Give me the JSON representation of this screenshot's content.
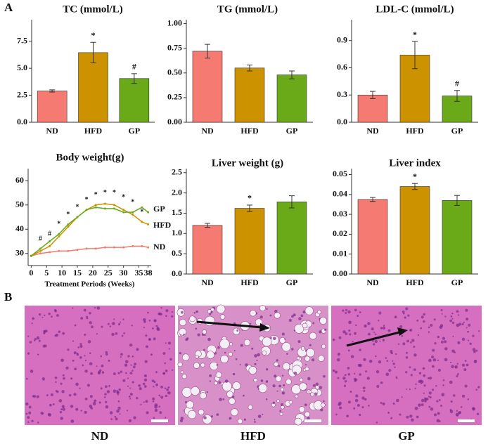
{
  "panel_labels": [
    "A",
    "B"
  ],
  "chart_data": [
    {
      "type": "bar",
      "title": "TC (mmol/L)",
      "categories": [
        "ND",
        "HFD",
        "GP"
      ],
      "values": [
        2.9,
        6.45,
        4.05
      ],
      "errors": [
        0.1,
        0.95,
        0.45
      ],
      "colors": [
        "#f47a72",
        "#cc9200",
        "#6aaa18"
      ],
      "markers": [
        null,
        "*",
        "#"
      ],
      "ylim": [
        0,
        9.5
      ],
      "yticks": [
        {
          "value": 0,
          "label": "0.0"
        },
        {
          "value": 2.5,
          "label": "2.5"
        },
        {
          "value": 5,
          "label": "5.0"
        },
        {
          "value": 7.5,
          "label": "7.5"
        }
      ]
    },
    {
      "type": "bar",
      "title": "TG (mmol/L)",
      "categories": [
        "ND",
        "HFD",
        "GP"
      ],
      "values": [
        0.72,
        0.55,
        0.48
      ],
      "errors": [
        0.07,
        0.03,
        0.04
      ],
      "colors": [
        "#f47a72",
        "#cc9200",
        "#6aaa18"
      ],
      "ylim": [
        0,
        1.04
      ],
      "yticks": [
        {
          "value": 0,
          "label": "0.00"
        },
        {
          "value": 0.25,
          "label": "0.25"
        },
        {
          "value": 0.5,
          "label": "0.50"
        },
        {
          "value": 0.75,
          "label": "0.75"
        },
        {
          "value": 1,
          "label": "1.00"
        }
      ]
    },
    {
      "type": "bar",
      "title": "LDL-C (mmol/L)",
      "categories": [
        "ND",
        "HFD",
        "GP"
      ],
      "values": [
        0.3,
        0.74,
        0.29
      ],
      "errors": [
        0.04,
        0.15,
        0.06
      ],
      "colors": [
        "#f47a72",
        "#cc9200",
        "#6aaa18"
      ],
      "markers": [
        null,
        "*",
        "#"
      ],
      "ylim": [
        0,
        1.13
      ],
      "yticks": [
        {
          "value": 0,
          "label": "0.0"
        },
        0.3,
        0.6,
        0.9
      ]
    },
    {
      "type": "line",
      "title": "Body weight(g)",
      "x_label": "Treatment Periods (Weeks)",
      "x": [
        0,
        3,
        6,
        9,
        12,
        15,
        18,
        21,
        24,
        27,
        30,
        33,
        36,
        38
      ],
      "series": [
        {
          "name": "ND",
          "color": "#f47a72",
          "values": [
            29,
            30,
            30.5,
            31,
            31,
            31.5,
            32,
            32,
            32.5,
            32.5,
            32.5,
            33,
            33,
            32.5
          ]
        },
        {
          "name": "HFD",
          "color": "#cc9200",
          "values": [
            29,
            31,
            33,
            37,
            41,
            45,
            48,
            50,
            50.5,
            50,
            48,
            46,
            43,
            42
          ]
        },
        {
          "name": "GP",
          "color": "#6aaa18",
          "values": [
            29,
            32,
            35,
            38,
            42,
            45,
            48,
            49,
            48.5,
            48.5,
            47,
            47,
            49,
            47
          ]
        }
      ],
      "annotations": [
        {
          "text": "#",
          "x": 3,
          "y": 36
        },
        {
          "text": "#",
          "x": 6,
          "y": 38
        },
        {
          "text": "*",
          "x": 9,
          "y": 42
        },
        {
          "text": "*",
          "x": 12,
          "y": 46
        },
        {
          "text": "*",
          "x": 15,
          "y": 49
        },
        {
          "text": "*",
          "x": 18,
          "y": 52
        },
        {
          "text": "*",
          "x": 21,
          "y": 54
        },
        {
          "text": "*",
          "x": 24,
          "y": 55
        },
        {
          "text": "*",
          "x": 27,
          "y": 55
        },
        {
          "text": "*",
          "x": 30,
          "y": 53
        },
        {
          "text": "*",
          "x": 33,
          "y": 51
        },
        {
          "text": "*",
          "x": 36,
          "y": 47
        }
      ],
      "xlim": [
        -1,
        39
      ],
      "xticks": [
        0,
        5,
        10,
        15,
        20,
        25,
        30,
        35,
        38
      ],
      "ylim": [
        25,
        65
      ],
      "yticks": [
        30,
        40,
        50,
        60
      ]
    },
    {
      "type": "bar",
      "title": "Liver weight (g)",
      "categories": [
        "ND",
        "HFD",
        "GP"
      ],
      "values": [
        1.2,
        1.62,
        1.78
      ],
      "errors": [
        0.05,
        0.08,
        0.15
      ],
      "colors": [
        "#f47a72",
        "#cc9200",
        "#6aaa18"
      ],
      "markers": [
        null,
        "*",
        null
      ],
      "ylim": [
        0,
        2.6
      ],
      "yticks": [
        {
          "value": 0,
          "label": "0.0"
        },
        0.5,
        {
          "value": 1,
          "label": "1.0"
        },
        1.5,
        {
          "value": 2,
          "label": "2.0"
        },
        2.5
      ]
    },
    {
      "type": "bar",
      "title": "Liver index",
      "categories": [
        "ND",
        "HFD",
        "GP"
      ],
      "values": [
        0.0375,
        0.044,
        0.037
      ],
      "errors": [
        0.001,
        0.0015,
        0.0025
      ],
      "colors": [
        "#f47a72",
        "#cc9200",
        "#6aaa18"
      ],
      "markers": [
        null,
        "*",
        null
      ],
      "ylim": [
        0,
        0.053
      ],
      "yticks": [
        {
          "value": 0,
          "label": "0.00"
        },
        0.01,
        0.02,
        0.03,
        0.04,
        0.05
      ]
    }
  ],
  "histology": {
    "labels": [
      "ND",
      "HFD",
      "GP"
    ]
  }
}
